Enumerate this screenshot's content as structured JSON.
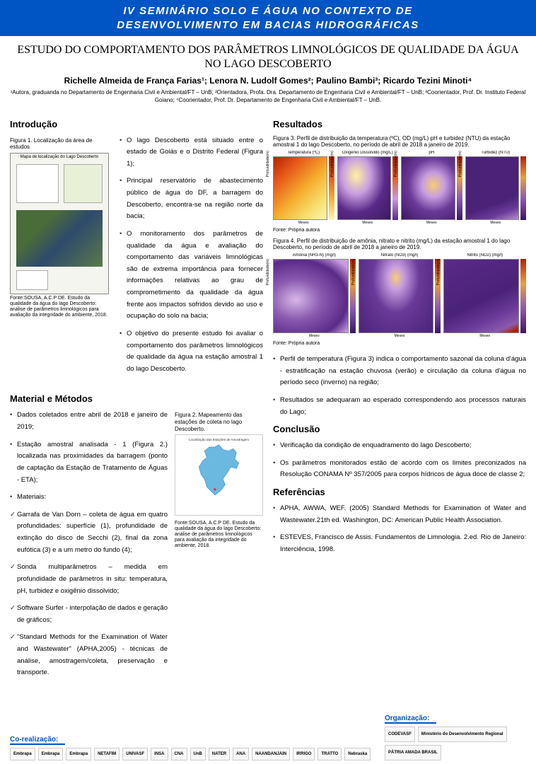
{
  "banner_line1": "IV SEMINÁRIO SOLO E ÁGUA NO CONTEXTO DE",
  "banner_line2": "DESENVOLVIMENTO EM BACIAS HIDROGRÁFICAS",
  "title": "ESTUDO DO COMPORTAMENTO DOS PARÂMETROS LIMNOLÓGICOS DE QUALIDADE DA ÁGUA NO LAGO DESCOBERTO",
  "authors": "Richelle Almeida de França Farias¹; Lenora N. Ludolf Gomes²; Paulino Bambi³; Ricardo Tezini Minoti⁴",
  "affiliations": "¹Autora, graduanda no Departamento de Engenharia Civil e Ambiental/FT – UnB; ²Orientadora, Profa. Dra. Departamento de Engenharia Civil e Ambiental/FT – UnB; ³Coorientador, Prof. Dr. Instituto Federal Goiano; ⁴Coorientador, Prof. Dr. Departamento de Engenharia Civil e Ambiental/FT – UnB.",
  "sections": {
    "intro": "Introdução",
    "methods": "Material e Métodos",
    "results": "Resultados",
    "conclusion": "Conclusão",
    "refs": "Referências"
  },
  "fig1": {
    "caption": "Figura 1. Localização da área de estudos",
    "map_title": "Mapa de localização do Lago Descoberto",
    "source": "Fonte:SOUSA, A.C.P DE. Estudo da qualidade da água do lago Descoberto: análise de parâmetros limnológicos para avaliação da integridade do ambiente, 2018."
  },
  "intro_bullets": [
    "O lago Descoberto está situado entre o estado de Goiás e o Distrito Federal (Figura 1);",
    "Principal reservatório de abastecimento público de água do DF, a barragem do Descoberto, encontra-se na região norte da bacia;",
    "O monitoramento dos parâmetros de qualidade da água e avaliação do comportamento das variáveis limnológicas são de extrema importância para fornecer informações relativas ao grau de comprometimento da qualidade da água frente aos impactos sofridos devido ao uso e ocupação do solo na bacia;",
    "O objetivo do presente estudo foi avaliar o comportamento dos parâmetros limnológicos de qualidade da água na estação amostral 1 do lago Descoberto."
  ],
  "methods_bullets": [
    "Dados coletados entre abril de 2018 e janeiro de 2019;",
    "Estação amostral analisada - 1 (Figura 2.) localizada nas proximidades da barragem (ponto de captação da Estação de Tratamento de Águas - ETA);",
    "Materiais:"
  ],
  "methods_check": [
    "Garrafa de Van Dorn – coleta de água em quatro profundidades: superfície (1), profundidade de extinção do disco de Secchi (2), final da zona eufótica (3) e a um metro do fundo (4);",
    "Sonda multiparâmetros – medida em profundidade de parâmetros in situ: temperatura, pH, turbidez e oxigênio dissolvido;",
    "Software Surfer - interpolação de dados e geração de gráficos;",
    "\"Standard Methods for the Examination of Water and Wastewater\" (APHA,2005) - técnicas de análise, amostragem/coleta, preservação e transporte."
  ],
  "fig2": {
    "caption": "Figura 2. Mapeamento das estações de coleta no lago Descoberto.",
    "subtitle": "Localização das Estações de Amostragem",
    "source": "Fonte:SOUSA, A.C.P DE. Estudo da qualidade da água do lago Descoberto: análise de parâmetros limnológicos para avaliação da integridade do ambiente, 2018.",
    "lake_color": "#6bb8e0"
  },
  "fig3": {
    "caption": "Figura 3. Perfil de distribuição da temperatura (ºC), OD (mg/L) pH e turbidez (NTU) da estação amostral 1 do lago Descoberto, no período de abril de 2018 a janeiro de 2019.",
    "source": "Fonte: Própria autora",
    "charts": [
      {
        "label": "Temperatura (ºC)",
        "gradient": "linear-gradient(135deg,#b22200 0%,#e85a1a 25%,#f5b030 55%,#f7e070 80%,#fff5b0 100%)",
        "cbar": "linear-gradient(to bottom,#b22200,#e85a1a,#f5b030,#fff5b0)"
      },
      {
        "label": "Oxigênio Dissolvido (mg/L)",
        "gradient": "radial-gradient(ellipse at 35% 30%, #fff2a0 0%, #c89de0 30%,#5a2a88 60%,#3a1860 100%)",
        "cbar": "linear-gradient(to bottom,#b22200,#e85a1a,#c89de0,#5a2a88)"
      },
      {
        "label": "pH",
        "gradient": "radial-gradient(ellipse at 60% 45%, #f5d070 0%, #c89de0 25%, #6a3a98 55%, #3a1860 100%)",
        "cbar": "linear-gradient(to bottom,#b22200,#e8a040,#8a5ab0,#3a1860)"
      },
      {
        "label": "Turbidez (NTU)",
        "gradient": "linear-gradient(160deg,#4a2278 0%,#4a2278 70%,#6a3a98 85%,#b88ad0 100%)",
        "cbar": "linear-gradient(to bottom,#b22200,#e8a040,#8a5ab0,#3a1860)"
      }
    ]
  },
  "fig4": {
    "caption": "Figura 4. Perfil de distribuição de amônia, nitrato e nitrito (mg/L) da estação amostral 1 do lago Descoberto, no período de abril de 2018 a janeiro de 2019.",
    "source": "Fonte: Própria autora",
    "charts": [
      {
        "label": "Amônia (NH3-N) (mg/l)",
        "gradient": "radial-gradient(ellipse at 30% 55%, #d8b8e8 0%,#8a5ab0 35%,#5a2a88 70%,#c89de0 90%)",
        "cbar": "linear-gradient(to bottom,#b22200,#e8a040,#8a5ab0,#3a1860)"
      },
      {
        "label": "Nitrato (NO3) (mg/l)",
        "gradient": "radial-gradient(ellipse at 50% 25%, #f5d070 0%,#c89de0 15%,#6a3a98 45%,#4a2278 100%)",
        "cbar": "linear-gradient(to bottom,#b22200,#e8a040,#8a5ab0,#3a1860)"
      },
      {
        "label": "Nitrito (NO2) (mg/l)",
        "gradient": "linear-gradient(155deg,#5a2a88 0%,#4a2278 55%,#6a3a98 75%,#8a5ab0 90%,#b22200 97%)",
        "cbar": "linear-gradient(to bottom,#b22200,#e8a040,#8a5ab0,#3a1860)"
      }
    ]
  },
  "axis": {
    "y": "Profundidade(m)",
    "x": "Meses"
  },
  "results_bullets": [
    "Perfil de temperatura (Figura 3) indica o comportamento sazonal da coluna d'água - estratificação na estação chuvosa (verão) e circulação da coluna d'água no período seco (inverno) na região;",
    "Resultados se adequaram ao esperado correspondendo aos processos naturais do Lago;"
  ],
  "conclusion_bullets": [
    "Verificação da condição de enquadramento do lago Descoberto;",
    "Os parâmetros monitorados estão de acordo com os limites preconizados na Resolução CONAMA Nº 357/2005 para corpos hídricos de água doce de classe 2;"
  ],
  "refs_bullets": [
    "APHA, AWWA, WEF. (2005) Standard Methods for Examination of Water and Wastewater.21th ed. Washington, DC: American Public Health Association.",
    "ESTEVES, Francisco de Assis. Fundamentos de Limnologia. 2.ed. Rio de Janeiro: Interciência, 1998."
  ],
  "footer": {
    "coreal": "Co-realização:",
    "org": "Organização:",
    "left_logos": [
      "Embrapa",
      "Embrapa",
      "Embrapa",
      "NETAFIM",
      "UNIVASF",
      "INSA",
      "CNA",
      "UnB",
      "NATER",
      "ANA",
      "NAANDANJAIN",
      "IRRIGO",
      "TRATTO",
      "Nebraska"
    ],
    "right_logos": [
      "CODEVASF",
      "Ministério do Desenvolvimento Regional",
      "PÁTRIA AMADA BRASIL"
    ]
  },
  "colors": {
    "banner_bg": "#0055c4",
    "banner_fg": "#ffffff",
    "accent": "#0055c4"
  }
}
